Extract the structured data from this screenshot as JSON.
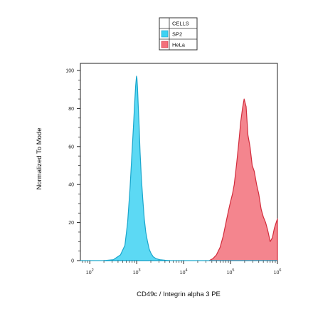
{
  "chart_data": {
    "type": "area",
    "title": "",
    "xlabel": "CD49c / Integrin alpha 3 PE",
    "ylabel": "Normalized To Mode",
    "xscale": "log",
    "xlim": [
      63,
      1000000
    ],
    "ylim": [
      0,
      104
    ],
    "grid": false,
    "legend": {
      "title": "CELLS",
      "placement": "top-center"
    },
    "x_ticks": [
      {
        "value": 100,
        "base": "10",
        "exp": "2"
      },
      {
        "value": 1000,
        "base": "10",
        "exp": "3"
      },
      {
        "value": 10000,
        "base": "10",
        "exp": "4"
      },
      {
        "value": 100000,
        "base": "10",
        "exp": "5"
      },
      {
        "value": 1000000,
        "base": "10",
        "exp": "6"
      }
    ],
    "y_ticks": [
      0,
      20,
      40,
      60,
      80,
      100
    ],
    "series": [
      {
        "name": "SP2",
        "color": "#3fd2f2",
        "stroke": "#1aa6cc",
        "x": [
          200,
          320,
          450,
          560,
          640,
          720,
          790,
          850,
          900,
          950,
          990,
          1010,
          1040,
          1080,
          1130,
          1180,
          1260,
          1350,
          1450,
          1560,
          1700,
          1850,
          2000,
          2250,
          2600,
          3100,
          4000,
          5000
        ],
        "y": [
          0,
          0.5,
          3,
          8,
          20,
          38,
          56,
          70,
          82,
          92,
          97,
          96,
          91,
          81,
          70,
          57,
          43,
          32,
          22,
          15,
          10,
          6,
          4,
          2,
          1,
          0.5,
          0.2,
          0
        ]
      },
      {
        "name": "HeLa",
        "color": "#f2707a",
        "stroke": "#d22c3c",
        "x": [
          35000,
          42000,
          50000,
          60000,
          70000,
          80000,
          90000,
          100000,
          110000,
          120000,
          135000,
          150000,
          165000,
          180000,
          195000,
          215000,
          235000,
          260000,
          290000,
          320000,
          360000,
          400000,
          450000,
          500000,
          560000,
          620000,
          700000,
          780000,
          860000,
          940000,
          1000000
        ],
        "y": [
          0,
          1,
          3,
          7,
          13,
          20,
          26,
          31,
          35,
          40,
          51,
          62,
          73,
          80,
          85,
          81,
          66,
          60,
          50,
          47,
          40,
          35,
          27,
          23,
          20,
          16,
          10,
          12,
          17,
          20,
          22
        ]
      }
    ]
  }
}
